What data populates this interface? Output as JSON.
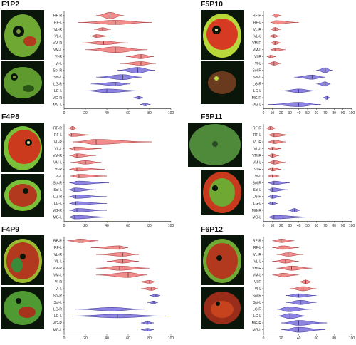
{
  "colors": {
    "red": "#f08c8c",
    "red_stroke": "#a83232",
    "blue": "#8c84e0",
    "blue_stroke": "#3a3296"
  },
  "chart_data": [
    {
      "id": "F1P2",
      "type": "violin",
      "title": "F1P2",
      "xlabel": "Fat fraction (%)",
      "xlim": [
        0,
        100
      ],
      "xticks": [
        0,
        20,
        40,
        60,
        80,
        100
      ],
      "categories": [
        "RF-R",
        "RF-L",
        "VL-R",
        "VL-L",
        "VM-R",
        "VM-L",
        "VI-R",
        "VI-L",
        "Sol-R",
        "Sol-L",
        "LG-R",
        "LG-L",
        "MG-R",
        "MG-L"
      ],
      "group": [
        "red",
        "red",
        "red",
        "red",
        "red",
        "red",
        "red",
        "red",
        "blue",
        "blue",
        "blue",
        "blue",
        "blue",
        "blue"
      ],
      "median": [
        43,
        48,
        36,
        30,
        37,
        48,
        72,
        72,
        69,
        55,
        48,
        40,
        70,
        76
      ],
      "min": [
        30,
        13,
        28,
        25,
        17,
        20,
        58,
        52,
        50,
        30,
        25,
        20,
        65,
        71
      ],
      "max": [
        56,
        82,
        44,
        42,
        60,
        78,
        84,
        86,
        85,
        73,
        62,
        73,
        74,
        81
      ],
      "spread": [
        4.5,
        3.0,
        2.2,
        2.0,
        2.5,
        4.0,
        3.0,
        2.5,
        4.0,
        3.5,
        2.5,
        2.5,
        2.0,
        2.0
      ]
    },
    {
      "id": "F5P10",
      "type": "violin",
      "title": "F5P10",
      "xlabel": "Fat fraction (%)",
      "xlim": [
        0,
        100
      ],
      "xticks": [
        0,
        10,
        20,
        30,
        40,
        50,
        60,
        70,
        80,
        90,
        100
      ],
      "categories": [
        "RF-R",
        "RF-L",
        "VL-R",
        "VL-L",
        "VM-R",
        "VM-L",
        "VI-R",
        "VI-L",
        "Sol-R",
        "Sol-L",
        "LG-R",
        "LG-L",
        "MG-R",
        "MG-L"
      ],
      "group": [
        "red",
        "red",
        "red",
        "red",
        "red",
        "red",
        "red",
        "red",
        "blue",
        "blue",
        "blue",
        "blue",
        "blue",
        "blue"
      ],
      "median": [
        14,
        14,
        13,
        12,
        13,
        13,
        8,
        12,
        70,
        55,
        70,
        40,
        72,
        40
      ],
      "min": [
        10,
        8,
        8,
        6,
        8,
        8,
        4,
        5,
        60,
        35,
        60,
        20,
        67,
        5
      ],
      "max": [
        20,
        40,
        20,
        18,
        20,
        25,
        14,
        20,
        78,
        70,
        76,
        60,
        75,
        65
      ],
      "spread": [
        2.5,
        2.5,
        2.5,
        2.0,
        2.5,
        2.0,
        2.0,
        2.5,
        3.5,
        3.0,
        3.0,
        2.5,
        2.5,
        3.0
      ]
    },
    {
      "id": "F4P8",
      "type": "violin",
      "title": "F4P8",
      "xlabel": "Fat fraction (%)",
      "xlim": [
        0,
        100
      ],
      "xticks": [
        0,
        20,
        40,
        60,
        80,
        100
      ],
      "categories": [
        "RF-R",
        "RF-L",
        "VL-R",
        "VL-L",
        "VM-R",
        "VM-L",
        "VI-R",
        "VI-L",
        "Sol-R",
        "Sol-L",
        "LG-R",
        "LG-L",
        "MG-R",
        "MG-L"
      ],
      "group": [
        "red",
        "red",
        "red",
        "red",
        "red",
        "red",
        "red",
        "red",
        "blue",
        "blue",
        "blue",
        "blue",
        "blue",
        "blue"
      ],
      "median": [
        8,
        7,
        30,
        10,
        12,
        20,
        12,
        14,
        13,
        10,
        11,
        11,
        12,
        10
      ],
      "min": [
        4,
        3,
        8,
        5,
        5,
        6,
        5,
        6,
        5,
        4,
        5,
        5,
        5,
        4
      ],
      "max": [
        12,
        27,
        82,
        35,
        30,
        35,
        38,
        40,
        42,
        30,
        40,
        40,
        40,
        43
      ],
      "spread": [
        2.5,
        2.0,
        3.5,
        2.5,
        2.5,
        2.5,
        2.5,
        2.5,
        2.5,
        2.5,
        2.5,
        2.5,
        2.5,
        2.5
      ]
    },
    {
      "id": "F5P11",
      "type": "violin",
      "title": "F5P11",
      "xlabel": "Fat fraction (%)",
      "xlim": [
        0,
        100
      ],
      "xticks": [
        0,
        10,
        20,
        30,
        40,
        50,
        60,
        70,
        80,
        90,
        100
      ],
      "categories": [
        "RF-R",
        "RF-L",
        "VL-R",
        "VL-L",
        "VM-R",
        "VM-L",
        "VI-R",
        "VI-L",
        "Sol-R",
        "Sol-L",
        "LG-R",
        "LG-L",
        "MG-R",
        "MG-L"
      ],
      "group": [
        "red",
        "red",
        "red",
        "red",
        "red",
        "red",
        "red",
        "red",
        "blue",
        "blue",
        "blue",
        "blue",
        "blue",
        "blue"
      ],
      "median": [
        8,
        12,
        12,
        10,
        10,
        12,
        10,
        10,
        12,
        10,
        10,
        10,
        35,
        12
      ],
      "min": [
        3,
        5,
        5,
        5,
        5,
        5,
        5,
        5,
        5,
        5,
        5,
        5,
        28,
        5
      ],
      "max": [
        14,
        30,
        25,
        20,
        18,
        25,
        20,
        18,
        30,
        28,
        20,
        16,
        42,
        55
      ],
      "spread": [
        2.5,
        2.5,
        2.5,
        2.0,
        2.5,
        2.5,
        2.5,
        2.0,
        2.5,
        2.5,
        2.5,
        2.0,
        2.5,
        2.5
      ]
    },
    {
      "id": "F4P9",
      "type": "violin",
      "title": "F4P9",
      "xlabel": "Fat fraction (%)",
      "xlim": [
        0,
        100
      ],
      "xticks": [
        0,
        20,
        40,
        60,
        80,
        100
      ],
      "categories": [
        "RF-R",
        "RF-L",
        "VL-R",
        "VL-L",
        "VM-R",
        "VM-L",
        "VI-R",
        "VI-L",
        "Sol-R",
        "Sol-L",
        "LG-R",
        "LG-L",
        "MG-R",
        "MG-L"
      ],
      "group": [
        "red",
        "red",
        "red",
        "red",
        "red",
        "red",
        "red",
        "red",
        "blue",
        "blue",
        "blue",
        "blue",
        "blue",
        "blue"
      ],
      "median": [
        15,
        52,
        55,
        55,
        52,
        60,
        80,
        82,
        86,
        84,
        45,
        50,
        78,
        78
      ],
      "min": [
        3,
        25,
        30,
        40,
        30,
        30,
        70,
        72,
        80,
        78,
        10,
        5,
        72,
        72
      ],
      "max": [
        32,
        60,
        70,
        70,
        80,
        78,
        86,
        88,
        90,
        88,
        75,
        95,
        84,
        84
      ],
      "spread": [
        2.5,
        2.5,
        2.5,
        2.5,
        3.0,
        3.5,
        2.0,
        2.5,
        2.0,
        2.0,
        2.5,
        2.5,
        2.0,
        2.0
      ]
    },
    {
      "id": "F6P12",
      "type": "violin",
      "title": "F6P12",
      "xlabel": "Fat fraction (%)",
      "xlim": [
        0,
        100
      ],
      "xticks": [
        0,
        20,
        40,
        60,
        80,
        100
      ],
      "categories": [
        "RF-R",
        "RF-L",
        "VL-R",
        "VL-L",
        "VM-R",
        "VM-L",
        "VI-R",
        "VI-L",
        "Sol-R",
        "Sol-L",
        "LG-R",
        "LG-L",
        "MG-R",
        "MG-L"
      ],
      "group": [
        "red",
        "red",
        "red",
        "red",
        "red",
        "red",
        "red",
        "red",
        "blue",
        "blue",
        "blue",
        "blue",
        "blue",
        "blue"
      ],
      "median": [
        20,
        22,
        28,
        25,
        32,
        22,
        48,
        45,
        40,
        42,
        28,
        30,
        40,
        40
      ],
      "min": [
        10,
        10,
        15,
        10,
        15,
        10,
        40,
        30,
        25,
        25,
        15,
        15,
        20,
        20
      ],
      "max": [
        35,
        40,
        45,
        40,
        55,
        40,
        55,
        60,
        60,
        60,
        55,
        50,
        72,
        70
      ],
      "spread": [
        2.5,
        2.5,
        2.5,
        2.5,
        3.0,
        2.5,
        2.5,
        3.0,
        2.5,
        3.0,
        3.5,
        3.5,
        3.5,
        3.5
      ]
    }
  ]
}
